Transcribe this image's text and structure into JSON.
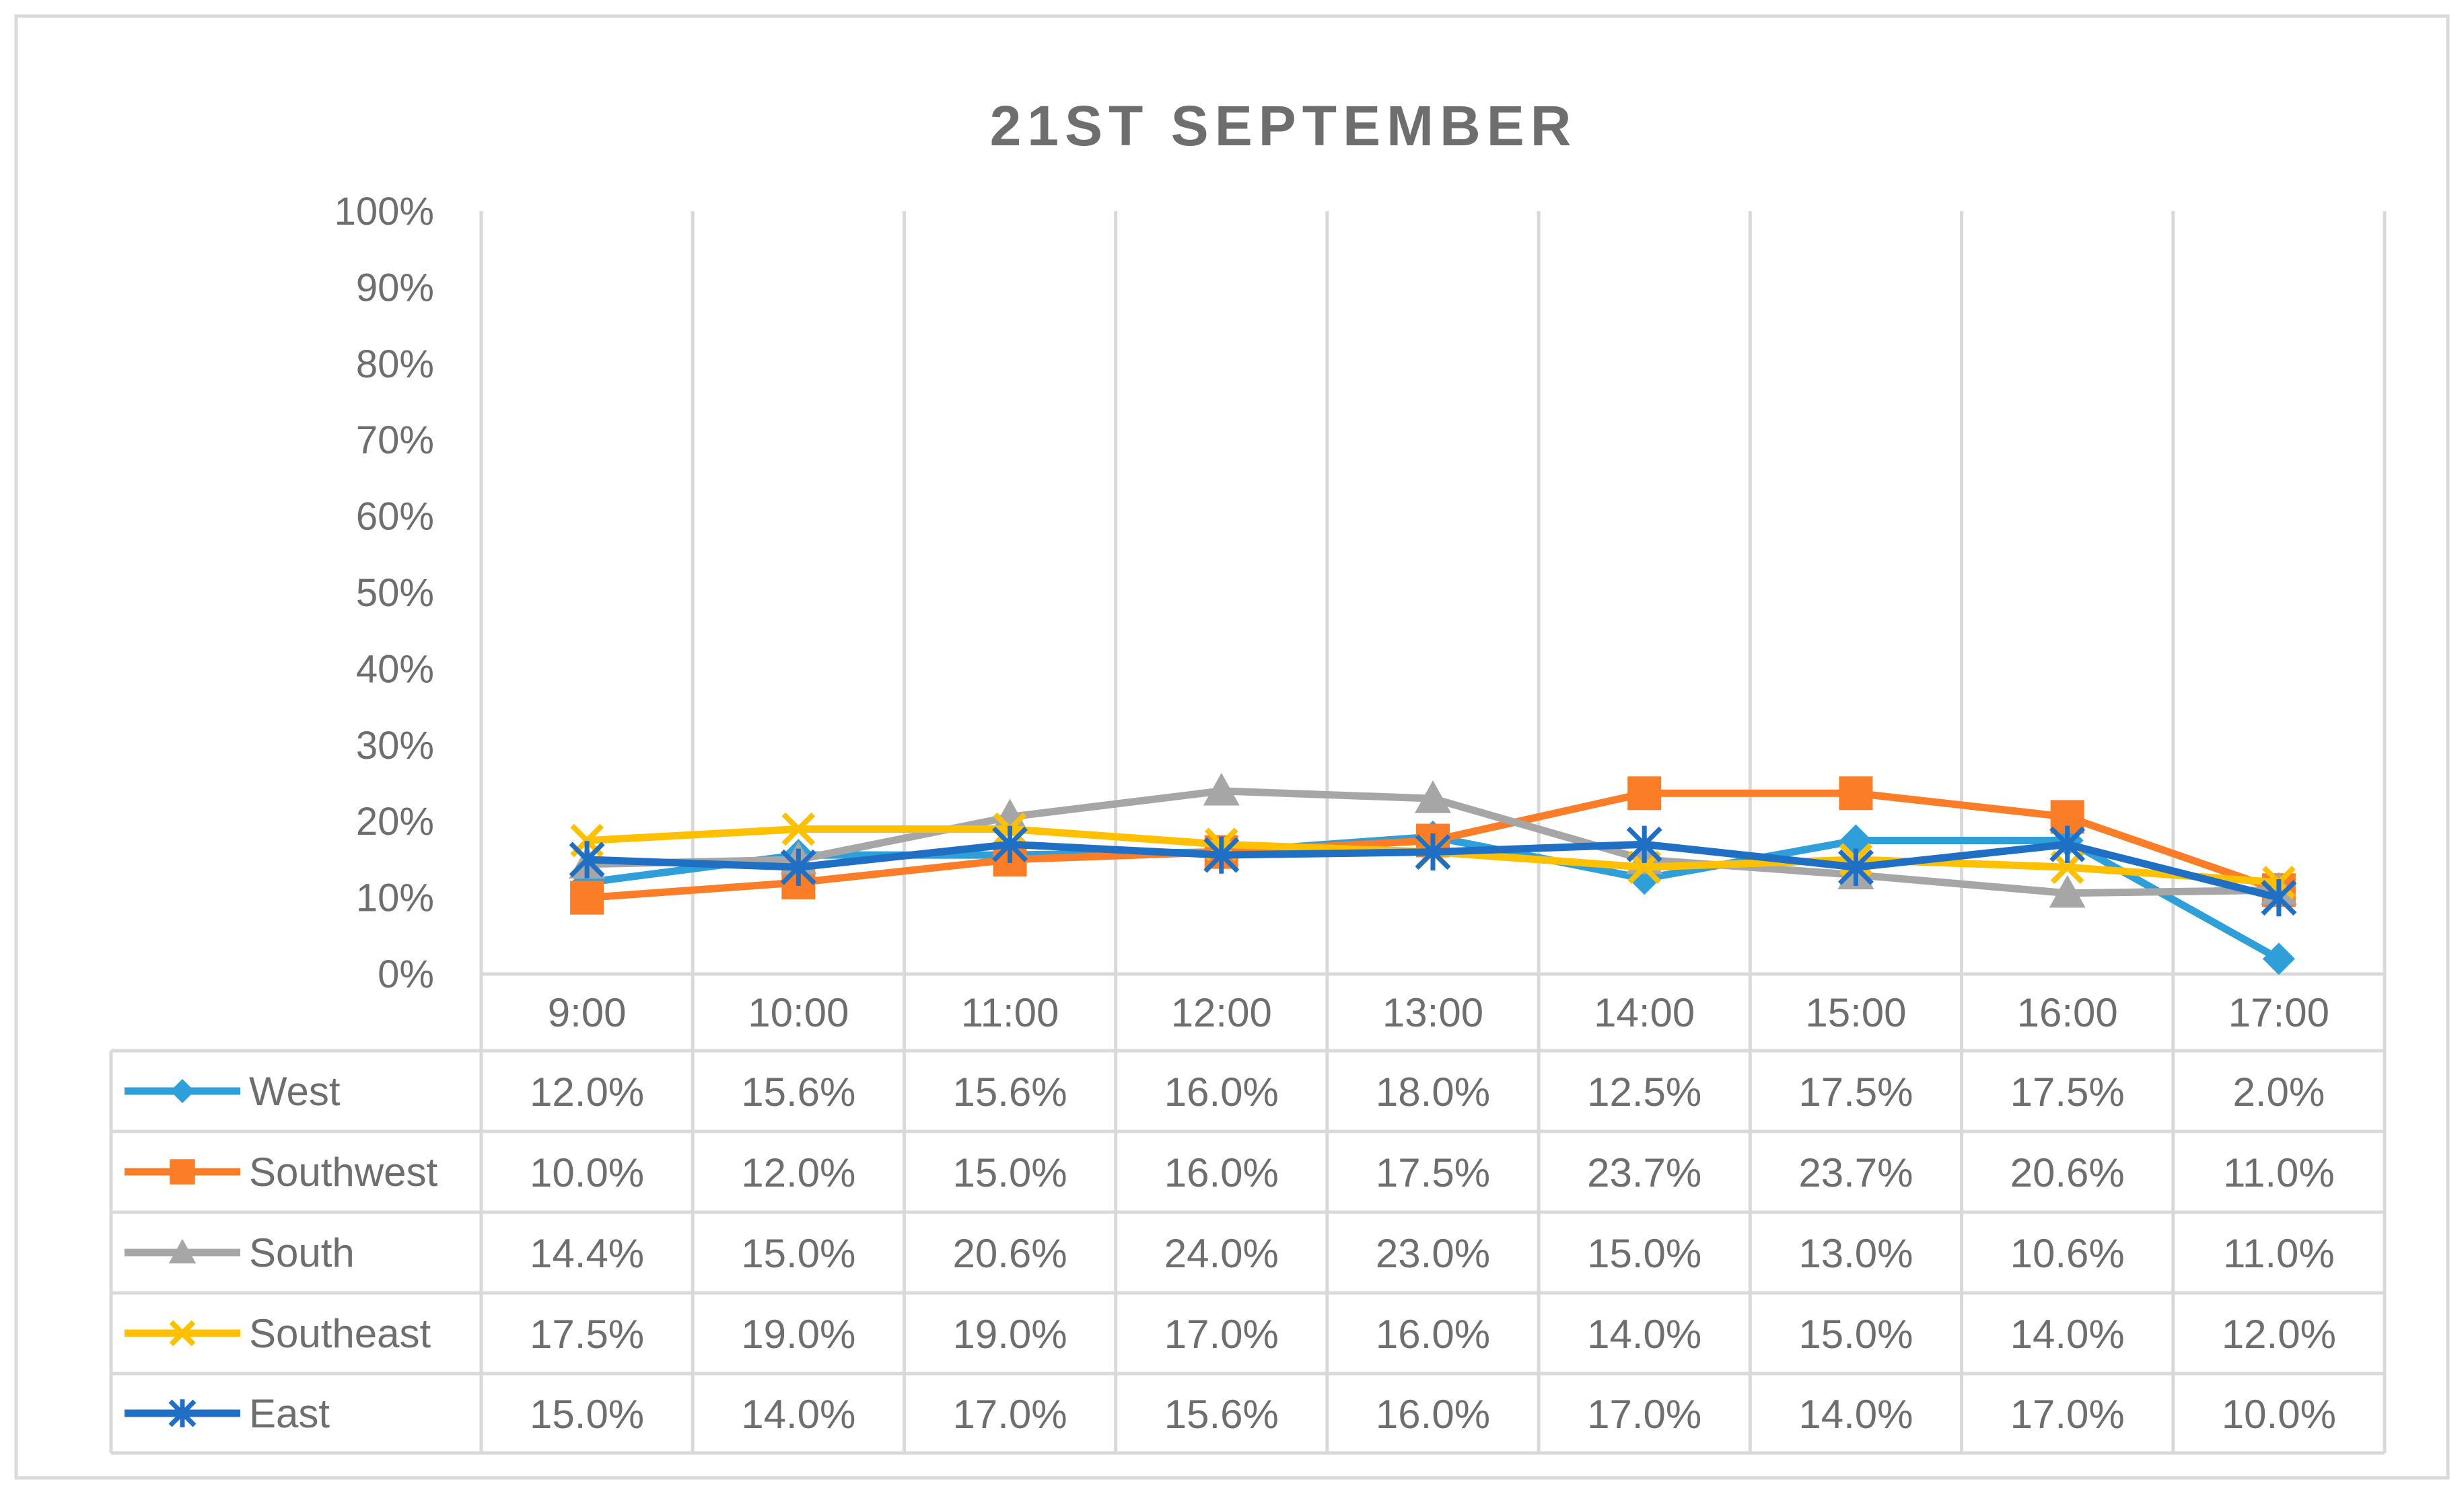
{
  "chart_data": {
    "type": "line",
    "title": "21ST SEPTEMBER",
    "xlabel": "",
    "ylabel": "",
    "ylim": [
      0,
      1
    ],
    "yticks": [
      "0%",
      "10%",
      "20%",
      "30%",
      "40%",
      "50%",
      "60%",
      "70%",
      "80%",
      "90%",
      "100%"
    ],
    "categories": [
      "9:00",
      "10:00",
      "11:00",
      "12:00",
      "13:00",
      "14:00",
      "15:00",
      "16:00",
      "17:00"
    ],
    "grid": "vertical",
    "legend": "data-table",
    "series": [
      {
        "name": "West",
        "color": "#2e9fd9",
        "marker": "diamond",
        "values": [
          0.12,
          0.156,
          0.156,
          0.16,
          0.18,
          0.125,
          0.175,
          0.175,
          0.02
        ],
        "labels": [
          "12.0%",
          "15.6%",
          "15.6%",
          "16.0%",
          "18.0%",
          "12.5%",
          "17.5%",
          "17.5%",
          "2.0%"
        ]
      },
      {
        "name": "Southwest",
        "color": "#fb7d27",
        "marker": "square",
        "values": [
          0.1,
          0.12,
          0.15,
          0.16,
          0.175,
          0.237,
          0.237,
          0.206,
          0.11
        ],
        "labels": [
          "10.0%",
          "12.0%",
          "15.0%",
          "16.0%",
          "17.5%",
          "23.7%",
          "23.7%",
          "20.6%",
          "11.0%"
        ]
      },
      {
        "name": "South",
        "color": "#a6a6a6",
        "marker": "triangle",
        "values": [
          0.144,
          0.15,
          0.206,
          0.24,
          0.23,
          0.15,
          0.13,
          0.106,
          0.11
        ],
        "labels": [
          "14.4%",
          "15.0%",
          "20.6%",
          "24.0%",
          "23.0%",
          "15.0%",
          "13.0%",
          "10.6%",
          "11.0%"
        ]
      },
      {
        "name": "Southeast",
        "color": "#ffc000",
        "marker": "x",
        "values": [
          0.175,
          0.19,
          0.19,
          0.17,
          0.16,
          0.14,
          0.15,
          0.14,
          0.12
        ],
        "labels": [
          "17.5%",
          "19.0%",
          "19.0%",
          "17.0%",
          "16.0%",
          "14.0%",
          "15.0%",
          "14.0%",
          "12.0%"
        ]
      },
      {
        "name": "East",
        "color": "#1f6fc5",
        "marker": "star",
        "values": [
          0.15,
          0.14,
          0.17,
          0.156,
          0.16,
          0.17,
          0.14,
          0.17,
          0.1
        ],
        "labels": [
          "15.0%",
          "14.0%",
          "17.0%",
          "15.6%",
          "16.0%",
          "17.0%",
          "14.0%",
          "17.0%",
          "10.0%"
        ]
      }
    ]
  }
}
